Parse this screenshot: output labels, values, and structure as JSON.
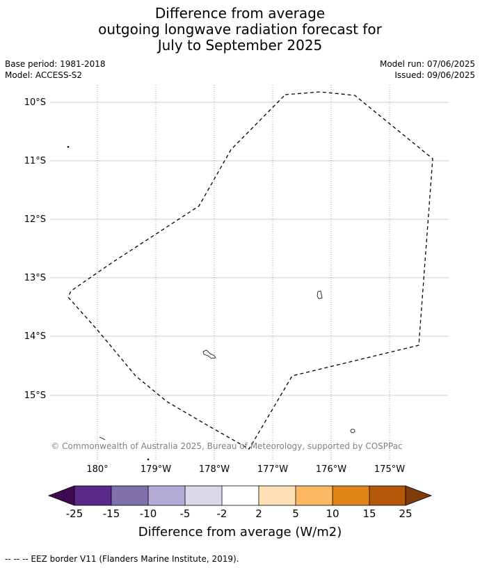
{
  "title": {
    "line1": "Difference from average",
    "line2": "outgoing longwave radiation forecast for",
    "line3": "July to September 2025"
  },
  "meta": {
    "base_period": "Base period: 1981-2018",
    "model": "Model: ACCESS-S2",
    "model_run": "Model run: 07/06/2025",
    "issued": "Issued: 09/06/2025"
  },
  "map": {
    "lat_labels": [
      "10°S",
      "11°S",
      "12°S",
      "13°S",
      "14°S",
      "15°S"
    ],
    "lon_labels": [
      "180°",
      "179°W",
      "178°W",
      "177°W",
      "176°W",
      "175°W"
    ],
    "copyright": "© Commonwealth of Australia 2025, Bureau of Meteorology, supported by COSPPac",
    "eez_line_style": "dashed",
    "gridline_color": "#bbbbbb"
  },
  "colorbar": {
    "label": "Difference from average (W/m2)",
    "ticks": [
      "-25",
      "-15",
      "-10",
      "-5",
      "-2",
      "2",
      "5",
      "10",
      "15",
      "25"
    ],
    "low_extend_color": "#3b0a4f",
    "high_extend_color": "#7f3b0a",
    "colors": [
      "#5a2a8a",
      "#8070ac",
      "#b2aad3",
      "#d9d9eb",
      "#ffffff",
      "#fee0b6",
      "#fdb863",
      "#e08214",
      "#b35806"
    ]
  },
  "footer": {
    "legend": "--  --  -- EEZ border V11 (Flanders Marine Institute, 2019)."
  }
}
